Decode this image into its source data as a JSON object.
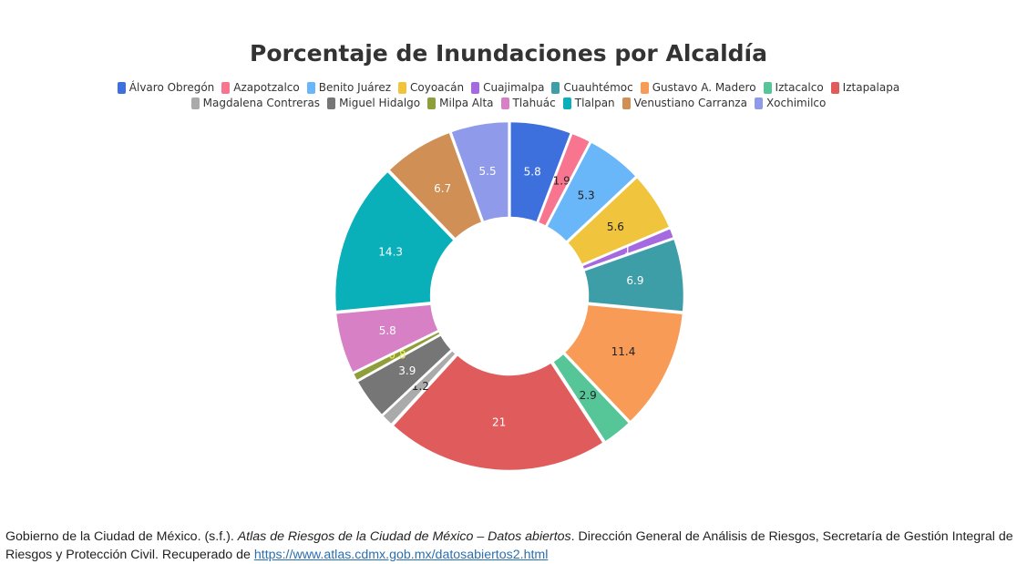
{
  "chart_data": {
    "type": "pie",
    "title": "Porcentaje de Inundaciones por Alcaldía",
    "legend_placement": "top",
    "hole": "donut",
    "categories": [
      "Álvaro Obregón",
      "Azapotzalco",
      "Benito Juárez",
      "Coyoacán",
      "Cuajimalpa",
      "Cuauhtémoc",
      "Gustavo A. Madero",
      "Iztacalco",
      "Iztapalapa",
      "Magdalena Contreras",
      "Miguel Hidalgo",
      "Milpa Alta",
      "Tlahuác",
      "Tlalpan",
      "Venustiano Carranza",
      "Xochimilco"
    ],
    "values": [
      5.8,
      1.9,
      5.3,
      5.6,
      1,
      6.9,
      11.4,
      2.9,
      21,
      1.2,
      3.9,
      0.8,
      5.8,
      14.3,
      6.7,
      5.5
    ],
    "labels": [
      "5.8",
      "1.9",
      "5.3",
      "5.6",
      "1",
      "6.9",
      "11.4",
      "2.9",
      "21",
      "1.2",
      "3.9",
      "0.8",
      "5.8",
      "14.3",
      "6.7",
      "5.5"
    ],
    "colors": [
      "#3d6fdd",
      "#f7758f",
      "#69b6f8",
      "#f0c53d",
      "#a66ae0",
      "#3e9ea8",
      "#f89b57",
      "#56c698",
      "#e05c5c",
      "#aaaaaa",
      "#767676",
      "#8f9e3a",
      "#d780c5",
      "#0ab0b9",
      "#d08f55",
      "#8f9aeb"
    ],
    "label_colors": [
      "#ffffff",
      "#222222",
      "#222222",
      "#222222",
      "#ffffff",
      "#ffffff",
      "#222222",
      "#222222",
      "#ffffff",
      "#222222",
      "#ffffff",
      "#e8f060",
      "#ffffff",
      "#ffffff",
      "#ffffff",
      "#ffffff"
    ]
  },
  "citation": {
    "author": "Gobierno de la Ciudad de México. (s.f.). ",
    "work": "Atlas de Riesgos de la Ciudad de México – Datos abiertos",
    "rest": ". Dirección General de Análisis de Riesgos, Secretaría de Gestión Integral de Riesgos y Protección Civil. Recuperado de ",
    "url": "https://www.atlas.cdmx.gob.mx/datosabiertos2.html"
  }
}
